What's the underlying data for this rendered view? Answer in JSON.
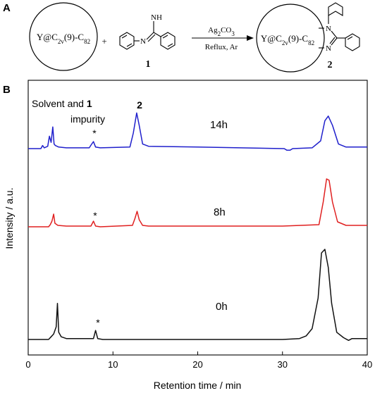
{
  "panel_a": {
    "letter": "A",
    "reactant_cage": "Y@C2v(9)-C82",
    "plus": "+",
    "amidine_nh": "NH",
    "amidine_n": "N",
    "compound1_label": "1",
    "reagent_top": "Ag2CO3",
    "reagent_bottom": "Reflux, Ar",
    "product_cage": "Y@C2v(9)-C82",
    "product_n_top": "N",
    "product_n_bottom": "N",
    "compound2_label": "2"
  },
  "panel_b": {
    "letter": "B"
  },
  "chart_data": {
    "type": "line",
    "xlabel": "Retention time / min",
    "ylabel": "Intensity / a.u.",
    "xlim": [
      0,
      40
    ],
    "x_ticks": [
      "0",
      "10",
      "20",
      "30",
      "40"
    ],
    "annotations": {
      "solvent": "Solvent and ",
      "solvent_bold": "1",
      "impurity": "impurity",
      "product": "2",
      "asterisk": "*"
    },
    "series": [
      {
        "name": "14h",
        "color": "#1f1fcc",
        "baseline": 0.0,
        "points": [
          [
            0,
            0
          ],
          [
            1.5,
            0
          ],
          [
            1.7,
            0.04
          ],
          [
            1.9,
            0.01
          ],
          [
            2.3,
            0.03
          ],
          [
            2.5,
            0.16
          ],
          [
            2.7,
            0.08
          ],
          [
            2.9,
            0.28
          ],
          [
            3.05,
            0.06
          ],
          [
            3.2,
            0.04
          ],
          [
            3.6,
            0.02
          ],
          [
            4.5,
            0.01
          ],
          [
            7.2,
            0.01
          ],
          [
            7.5,
            0.06
          ],
          [
            7.7,
            0.09
          ],
          [
            7.95,
            0.02
          ],
          [
            8.5,
            0.01
          ],
          [
            12.0,
            0.02
          ],
          [
            12.4,
            0.2
          ],
          [
            12.8,
            0.46
          ],
          [
            13.1,
            0.3
          ],
          [
            13.5,
            0.06
          ],
          [
            14.2,
            0.03
          ],
          [
            20,
            0.02
          ],
          [
            30.2,
            0.0
          ],
          [
            30.5,
            -0.02
          ],
          [
            30.9,
            -0.02
          ],
          [
            31.2,
            0.0
          ],
          [
            33.5,
            0.01
          ],
          [
            34.5,
            0.1
          ],
          [
            35.0,
            0.36
          ],
          [
            35.4,
            0.42
          ],
          [
            35.9,
            0.3
          ],
          [
            36.6,
            0.06
          ],
          [
            37.5,
            0.02
          ],
          [
            40,
            0.02
          ]
        ]
      },
      {
        "name": "8h",
        "color": "#e02020",
        "baseline": 0.0,
        "points": [
          [
            0,
            0
          ],
          [
            2.4,
            0
          ],
          [
            2.6,
            0.03
          ],
          [
            2.8,
            0.08
          ],
          [
            3.0,
            0.18
          ],
          [
            3.15,
            0.05
          ],
          [
            3.5,
            0.02
          ],
          [
            4.5,
            0.01
          ],
          [
            7.4,
            0.01
          ],
          [
            7.7,
            0.08
          ],
          [
            7.95,
            0.01
          ],
          [
            8.5,
            0.0
          ],
          [
            12.3,
            0.02
          ],
          [
            12.6,
            0.12
          ],
          [
            12.85,
            0.22
          ],
          [
            13.1,
            0.1
          ],
          [
            13.5,
            0.02
          ],
          [
            14.2,
            0.01
          ],
          [
            30,
            0.01
          ],
          [
            34.3,
            0.03
          ],
          [
            34.8,
            0.35
          ],
          [
            35.2,
            0.68
          ],
          [
            35.5,
            0.66
          ],
          [
            35.9,
            0.35
          ],
          [
            36.5,
            0.07
          ],
          [
            37.5,
            0.02
          ],
          [
            40,
            0.02
          ]
        ]
      },
      {
        "name": "0h",
        "color": "#111111",
        "baseline": 0.0,
        "points": [
          [
            0,
            0
          ],
          [
            2.4,
            0
          ],
          [
            2.7,
            0.03
          ],
          [
            3.0,
            0.06
          ],
          [
            3.3,
            0.14
          ],
          [
            3.45,
            0.4
          ],
          [
            3.6,
            0.08
          ],
          [
            3.9,
            0.03
          ],
          [
            4.5,
            0.01
          ],
          [
            7.7,
            0.01
          ],
          [
            7.95,
            0.1
          ],
          [
            8.2,
            0.01
          ],
          [
            8.8,
            0.0
          ],
          [
            30,
            0.0
          ],
          [
            32.0,
            0.01
          ],
          [
            32.8,
            0.04
          ],
          [
            33.5,
            0.12
          ],
          [
            34.2,
            0.46
          ],
          [
            34.6,
            0.96
          ],
          [
            35.0,
            1.0
          ],
          [
            35.4,
            0.8
          ],
          [
            35.8,
            0.4
          ],
          [
            36.4,
            0.08
          ],
          [
            37.2,
            0.02
          ],
          [
            37.8,
            -0.01
          ],
          [
            38.2,
            0.01
          ],
          [
            40,
            0.01
          ]
        ]
      }
    ]
  }
}
